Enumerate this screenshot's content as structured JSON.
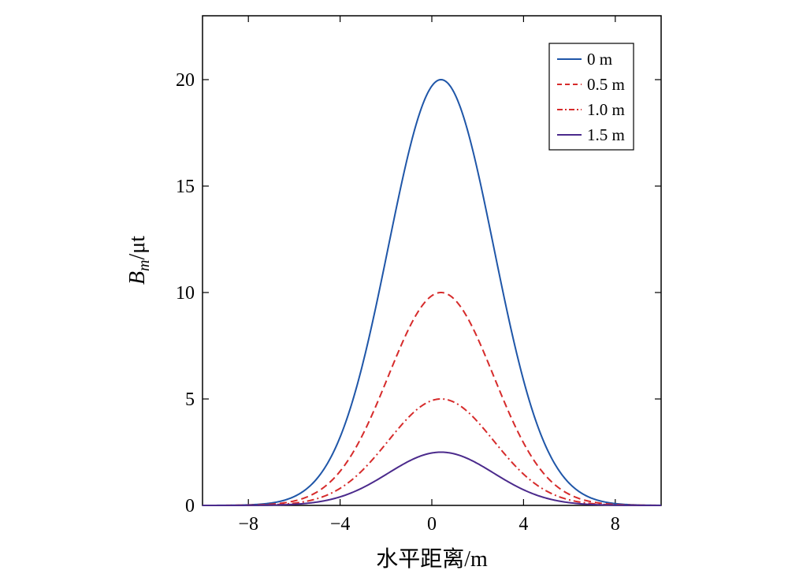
{
  "chart_data": {
    "type": "line",
    "title": "",
    "xlabel": "水平距离/m",
    "ylabel": {
      "base": "B",
      "subscript": "m",
      "unit": "/μt"
    },
    "xlim": [
      -10,
      10
    ],
    "ylim": [
      0,
      23
    ],
    "x_ticks": [
      -8,
      -4,
      0,
      4,
      8
    ],
    "x_tick_labels": [
      "−8",
      "−4",
      "0",
      "4",
      "8"
    ],
    "y_ticks": [
      0,
      5,
      10,
      15,
      20
    ],
    "y_tick_labels": [
      "0",
      "5",
      "10",
      "15",
      "20"
    ],
    "grid": false,
    "legend_position": "top-right",
    "curve_center": 0.4,
    "curve_width": 2.3,
    "series": [
      {
        "name": "0 m",
        "peak": 20,
        "color": "#1f56a8",
        "dash": "solid"
      },
      {
        "name": "0.5 m",
        "peak": 10,
        "color": "#d62b2b",
        "dash": "dashed"
      },
      {
        "name": "1.0 m",
        "peak": 5,
        "color": "#d62b2b",
        "dash": "dashdot"
      },
      {
        "name": "1.5 m",
        "peak": 2.5,
        "color": "#4b2a8c",
        "dash": "solid"
      }
    ]
  }
}
